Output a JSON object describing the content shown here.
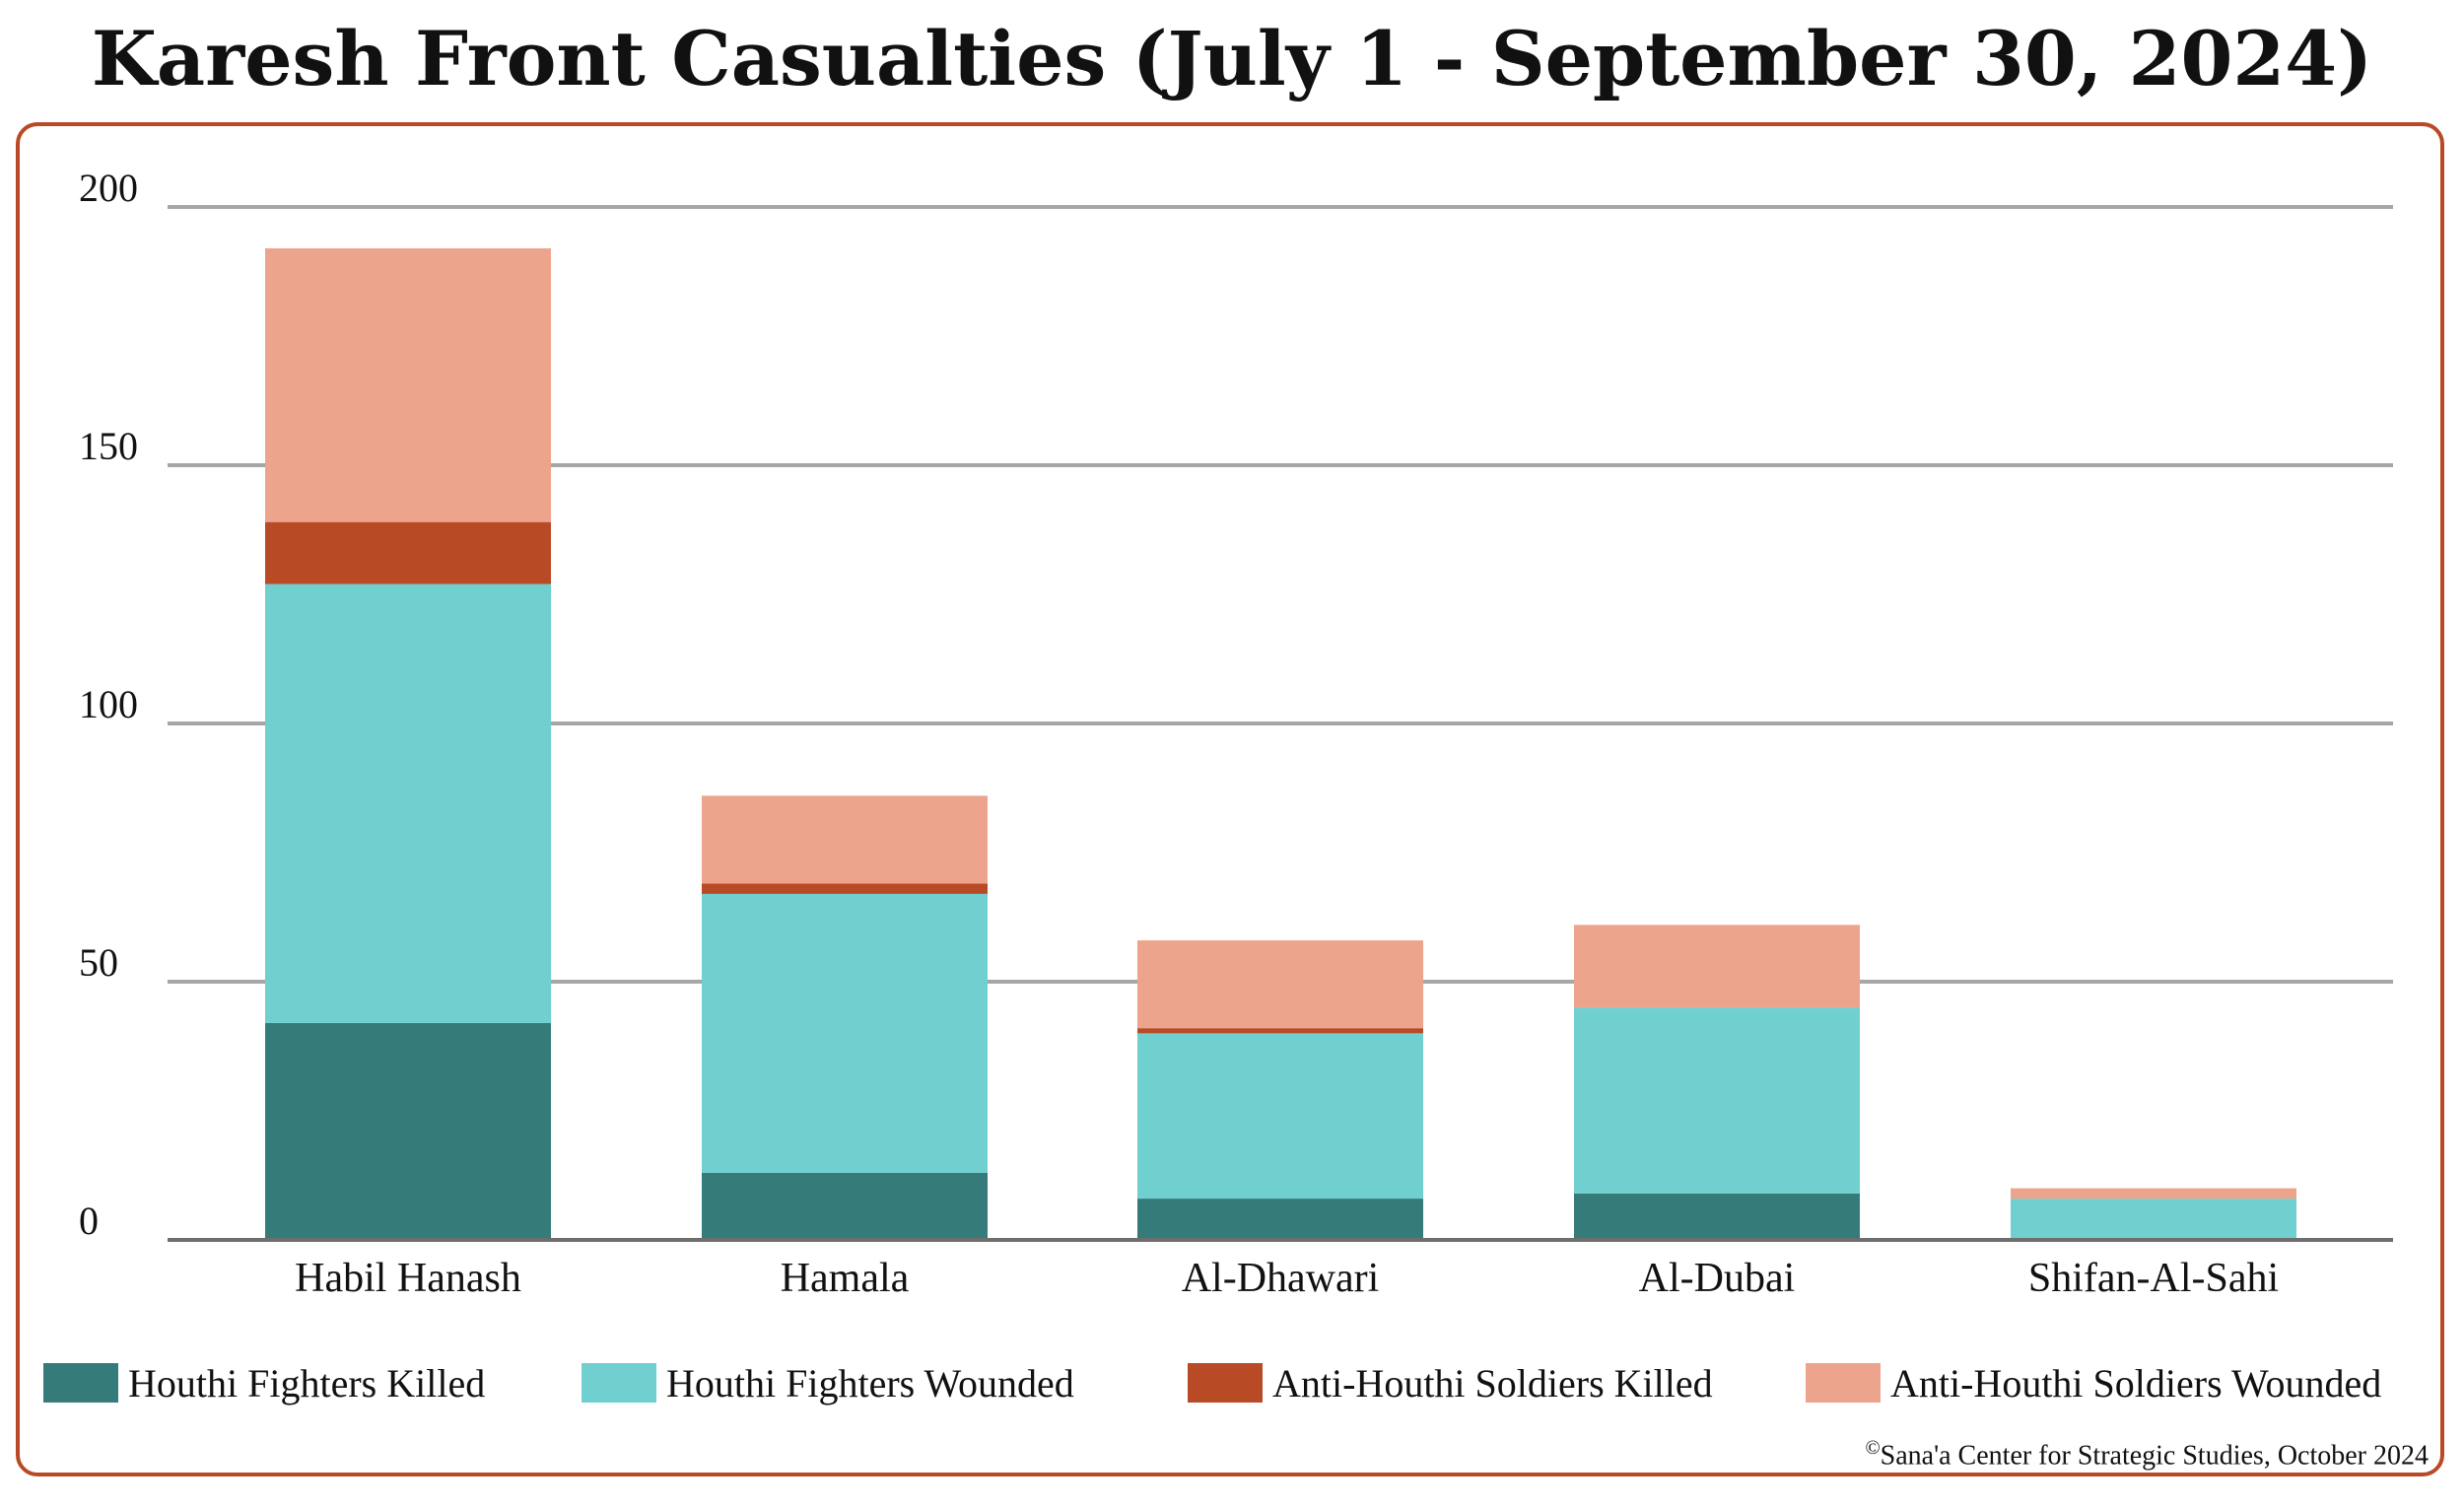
{
  "title": "Karesh Front Casualties (July 1 - September 30, 2024)",
  "credit": {
    "symbol": "©",
    "text": "Sana'a Center for Strategic Studies, October 2024"
  },
  "legend": [
    {
      "label": "Houthi Fighters Killed",
      "color": "#357b7a"
    },
    {
      "label": "Houthi Fighters Wounded",
      "color": "#70cfcf"
    },
    {
      "label": "Anti-Houthi Soldiers Killed",
      "color": "#b94a26"
    },
    {
      "label": "Anti-Houthi Soldiers Wounded",
      "color": "#eca48c"
    }
  ],
  "chart_data": {
    "type": "bar",
    "stacked": true,
    "title": "Karesh Front Casualties (July 1 - September 30, 2024)",
    "xlabel": "",
    "ylabel": "",
    "categories": [
      "Habil Hanash",
      "Hamala",
      "Al-Dhawari",
      "Al-Dubai",
      "Shifan-Al-Sahi"
    ],
    "series": [
      {
        "name": "Houthi Fighters Killed",
        "color": "#357b7a",
        "values": [
          42,
          13,
          8,
          9,
          0
        ]
      },
      {
        "name": "Houthi Fighters Wounded",
        "color": "#70cfcf",
        "values": [
          85,
          54,
          32,
          36,
          8
        ]
      },
      {
        "name": "Anti-Houthi Soldiers Killed",
        "color": "#b94a26",
        "values": [
          12,
          2,
          1,
          0,
          0
        ]
      },
      {
        "name": "Anti-Houthi Soldiers Wounded",
        "color": "#eca48c",
        "values": [
          53,
          17,
          17,
          16,
          2
        ]
      }
    ],
    "yticks": [
      0,
      50,
      100,
      150,
      200
    ],
    "ylim": [
      0,
      200
    ],
    "grid": true,
    "legend_position": "bottom"
  }
}
